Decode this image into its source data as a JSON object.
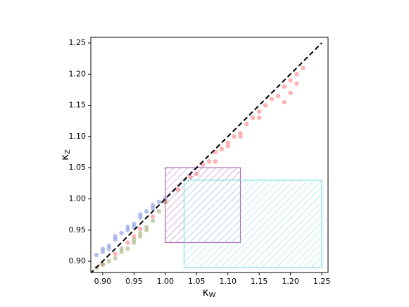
{
  "chart_data": {
    "type": "scatter",
    "xlabel": {
      "symbol": "κ",
      "subscript": "W"
    },
    "ylabel": {
      "symbol": "κ",
      "subscript": "Z"
    },
    "xlim": [
      0.881,
      1.26
    ],
    "ylim": [
      0.882,
      1.259
    ],
    "xticks": [
      {
        "value": 0.9,
        "label": "0.90"
      },
      0.95,
      {
        "value": 1.0,
        "label": "1.00"
      },
      1.05,
      {
        "value": 1.1,
        "label": "1.10"
      },
      1.15,
      {
        "value": 1.2,
        "label": "1.20"
      },
      1.25
    ],
    "yticks": [
      {
        "value": 0.9,
        "label": "0.90"
      },
      0.95,
      {
        "value": 1.0,
        "label": "1.00"
      },
      1.05,
      {
        "value": 1.1,
        "label": "1.10"
      },
      1.15,
      {
        "value": 1.2,
        "label": "1.20"
      },
      1.25
    ],
    "series": [
      {
        "color": "#ffb3b3",
        "x": [
          0.9,
          0.92,
          0.94,
          0.96,
          0.98,
          1.0,
          1.02,
          1.04,
          1.05,
          1.06,
          1.07,
          1.08,
          1.09,
          1.1,
          1.11,
          1.12,
          1.13,
          1.14,
          1.15,
          1.16,
          1.17,
          1.18,
          1.19,
          1.2,
          1.21,
          1.22,
          1.15,
          1.12,
          1.08,
          1.1,
          1.2,
          1.19,
          1.21,
          0.95
        ],
        "y": [
          0.895,
          0.912,
          0.93,
          0.952,
          0.972,
          0.995,
          1.015,
          1.035,
          1.04,
          1.055,
          1.06,
          1.075,
          1.08,
          1.09,
          1.1,
          1.105,
          1.12,
          1.13,
          1.13,
          1.15,
          1.16,
          1.165,
          1.18,
          1.19,
          1.2,
          1.21,
          1.14,
          1.1,
          1.06,
          1.085,
          1.17,
          1.155,
          1.185,
          0.94
        ]
      },
      {
        "color": "rgba(120,140,220,0.55)",
        "x": [
          0.89,
          0.9,
          0.91,
          0.92,
          0.93,
          0.94,
          0.95,
          0.96,
          0.97,
          0.98,
          0.99,
          1.0,
          0.9,
          0.92,
          0.94,
          0.96,
          0.98,
          0.91,
          0.95
        ],
        "y": [
          0.91,
          0.915,
          0.925,
          0.935,
          0.945,
          0.95,
          0.96,
          0.97,
          0.98,
          0.99,
          0.995,
          1.0,
          0.92,
          0.94,
          0.955,
          0.975,
          0.985,
          0.92,
          0.955
        ]
      },
      {
        "color": "rgba(160,170,110,0.55)",
        "x": [
          0.89,
          0.9,
          0.91,
          0.92,
          0.93,
          0.94,
          0.95,
          0.96,
          0.97,
          0.98,
          0.99,
          1.0,
          0.93,
          0.95,
          0.97,
          0.96
        ],
        "y": [
          0.89,
          0.895,
          0.9,
          0.905,
          0.915,
          0.92,
          0.93,
          0.94,
          0.95,
          0.965,
          0.98,
          0.995,
          0.92,
          0.935,
          0.955,
          0.945
        ]
      }
    ],
    "reference_line": {
      "x": [
        0.88,
        1.25
      ],
      "y": [
        0.88,
        1.25
      ],
      "color": "#000000"
    },
    "regions": [
      {
        "x": [
          1.0,
          1.12
        ],
        "y": [
          0.93,
          1.05
        ],
        "color": "#b06ab3"
      },
      {
        "x": [
          1.03,
          1.25
        ],
        "y": [
          0.89,
          1.03
        ],
        "color": "#7fe0e0"
      }
    ]
  }
}
